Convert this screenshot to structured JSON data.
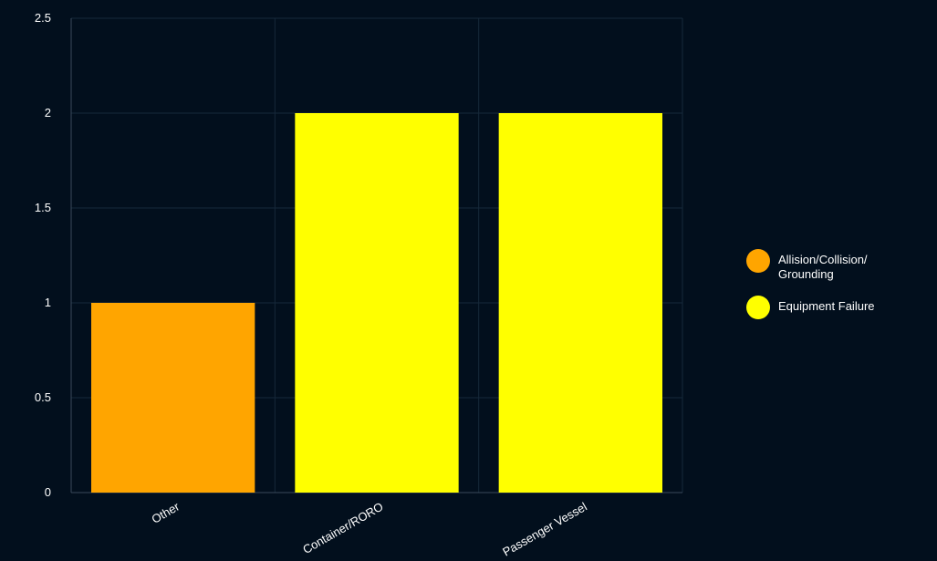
{
  "chart_data": {
    "type": "bar",
    "categories": [
      "Other",
      "Container/RORO",
      "Passenger Vessel"
    ],
    "series": [
      {
        "name": "Allision/Collision/Grounding",
        "color": "#ffa500",
        "values": [
          1,
          0,
          0
        ]
      },
      {
        "name": "Equipment Failure",
        "color": "#ffff00",
        "values": [
          0,
          2,
          2
        ]
      }
    ],
    "ylim": [
      0,
      2.5
    ],
    "yticks": [
      "0",
      "0.5",
      "1",
      "1.5",
      "2",
      "2.5"
    ],
    "grid": true,
    "legend_position": "right"
  },
  "legend": {
    "items": [
      {
        "label_line1": "Allision/Collision/",
        "label_line2": "Grounding",
        "color": "#ffa500"
      },
      {
        "label_line1": "Equipment Failure",
        "label_line2": "",
        "color": "#ffff00"
      }
    ]
  }
}
